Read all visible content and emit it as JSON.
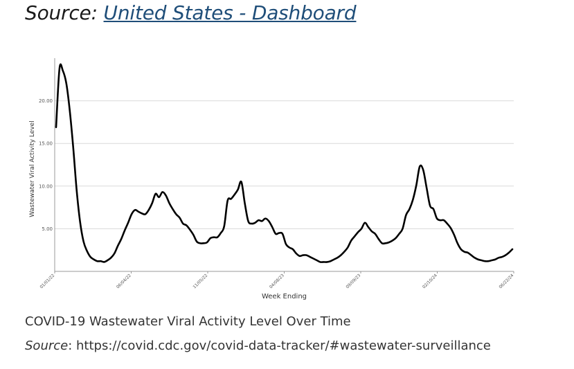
{
  "header": {
    "prefix": "Source: ",
    "link_text": "United States - Dashboard"
  },
  "caption": "COVID-19 Wastewater Viral Activity Level Over Time",
  "source": {
    "label": "Source",
    "text": ": https://covid.cdc.gov/covid-data-tracker/#wastewater-surveillance"
  },
  "colors": {
    "line": "#000000",
    "grid": "#d9d9d9",
    "axis": "#999999",
    "text": "#333333",
    "link": "#1f4e79"
  },
  "chart_data": {
    "type": "line",
    "title": "",
    "xlabel": "Week Ending",
    "ylabel": "Wastewater Viral Activity Level",
    "ylim": [
      0,
      25
    ],
    "yticks": [
      "20.00",
      "15.00",
      "10.00",
      "5.00"
    ],
    "xticks": [
      "01/01/22",
      "06/04/22",
      "11/05/22",
      "04/08/23",
      "09/09/23",
      "02/10/24",
      "06/22/24"
    ],
    "grid": true,
    "series": [
      {
        "name": "Wastewater Viral Activity Level",
        "x_start": "01/01/22",
        "interval": "weekly",
        "values": [
          16.9,
          23.8,
          23.5,
          22.0,
          18.8,
          14.5,
          9.5,
          5.8,
          3.5,
          2.4,
          1.7,
          1.4,
          1.2,
          1.2,
          1.1,
          1.3,
          1.6,
          2.1,
          3.0,
          3.8,
          4.8,
          5.7,
          6.7,
          7.2,
          7.0,
          6.8,
          6.7,
          7.2,
          8.0,
          9.1,
          8.7,
          9.3,
          8.9,
          8.0,
          7.3,
          6.7,
          6.3,
          5.6,
          5.4,
          4.9,
          4.3,
          3.5,
          3.3,
          3.3,
          3.4,
          3.9,
          4.0,
          4.0,
          4.5,
          5.3,
          8.3,
          8.5,
          9.0,
          9.6,
          10.5,
          8.0,
          5.9,
          5.6,
          5.7,
          6.0,
          5.9,
          6.2,
          5.9,
          5.2,
          4.4,
          4.5,
          4.4,
          3.2,
          2.8,
          2.6,
          2.1,
          1.8,
          1.9,
          1.9,
          1.7,
          1.5,
          1.3,
          1.1,
          1.1,
          1.1,
          1.2,
          1.4,
          1.6,
          1.9,
          2.3,
          2.8,
          3.6,
          4.1,
          4.6,
          5.0,
          5.7,
          5.2,
          4.7,
          4.4,
          3.8,
          3.3,
          3.3,
          3.4,
          3.6,
          3.9,
          4.4,
          5.0,
          6.6,
          7.3,
          8.4,
          10.1,
          12.3,
          11.9,
          9.8,
          7.7,
          7.3,
          6.2,
          6.0,
          6.0,
          5.6,
          5.1,
          4.3,
          3.3,
          2.6,
          2.3,
          2.2,
          1.9,
          1.6,
          1.4,
          1.3,
          1.2,
          1.2,
          1.3,
          1.4,
          1.6,
          1.7,
          1.9,
          2.2,
          2.6
        ]
      }
    ]
  }
}
